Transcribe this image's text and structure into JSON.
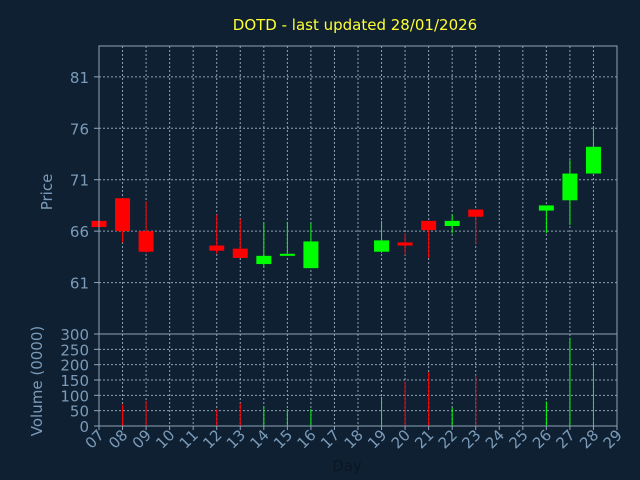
{
  "chart_data": [
    {
      "type": "candlestick",
      "title": "DOTD - last updated 28/01/2026",
      "ylabel": "Price",
      "ylim": [
        56,
        84
      ],
      "yticks": [
        61,
        66,
        71,
        76,
        81
      ],
      "grid": true,
      "colors": {
        "up": "#00ff00",
        "down": "#ff0000",
        "background": "#0f2033",
        "text": "#7b9bb8",
        "title": "#ffff33",
        "grid": "#8fa3b6"
      },
      "days": [
        "07",
        "08",
        "09",
        "10",
        "11",
        "12",
        "13",
        "14",
        "15",
        "16",
        "17",
        "18",
        "19",
        "20",
        "21",
        "22",
        "23",
        "24",
        "25",
        "26",
        "27",
        "28",
        "29"
      ],
      "candles": [
        {
          "day": "07",
          "open": 67.0,
          "high": 67.0,
          "low": 66.4,
          "close": 66.4
        },
        {
          "day": "08",
          "open": 69.2,
          "high": 69.2,
          "low": 64.9,
          "close": 66.0
        },
        {
          "day": "09",
          "open": 66.0,
          "high": 68.9,
          "low": 63.9,
          "close": 64.0
        },
        {
          "day": "12",
          "open": 64.6,
          "high": 67.6,
          "low": 63.8,
          "close": 64.1
        },
        {
          "day": "13",
          "open": 64.3,
          "high": 67.2,
          "low": 63.4,
          "close": 63.4
        },
        {
          "day": "14",
          "open": 62.8,
          "high": 66.8,
          "low": 62.5,
          "close": 63.6
        },
        {
          "day": "15",
          "open": 63.6,
          "high": 66.9,
          "low": 63.6,
          "close": 63.8
        },
        {
          "day": "16",
          "open": 62.4,
          "high": 66.8,
          "low": 62.4,
          "close": 65.0
        },
        {
          "day": "19",
          "open": 64.0,
          "high": 67.0,
          "low": 63.9,
          "close": 65.1
        },
        {
          "day": "20",
          "open": 64.9,
          "high": 65.8,
          "low": 63.7,
          "close": 64.6
        },
        {
          "day": "21",
          "open": 67.0,
          "high": 67.0,
          "low": 63.4,
          "close": 66.1
        },
        {
          "day": "22",
          "open": 66.5,
          "high": 67.6,
          "low": 65.8,
          "close": 67.0
        },
        {
          "day": "23",
          "open": 68.1,
          "high": 68.1,
          "low": 64.7,
          "close": 67.4
        },
        {
          "day": "26",
          "open": 68.0,
          "high": 68.5,
          "low": 65.8,
          "close": 68.5
        },
        {
          "day": "27",
          "open": 69.0,
          "high": 72.9,
          "low": 66.6,
          "close": 71.6
        },
        {
          "day": "28",
          "open": 71.6,
          "high": 76.0,
          "low": 71.6,
          "close": 74.2
        }
      ]
    },
    {
      "type": "bar",
      "ylabel": "Volume (0000)",
      "xlabel": "Day",
      "ylim": [
        0,
        300
      ],
      "yticks": [
        0,
        50,
        100,
        150,
        200,
        250,
        300
      ],
      "grid": true,
      "days": [
        "07",
        "08",
        "09",
        "10",
        "11",
        "12",
        "13",
        "14",
        "15",
        "16",
        "17",
        "18",
        "19",
        "20",
        "21",
        "22",
        "23",
        "24",
        "25",
        "26",
        "27",
        "28",
        "29"
      ],
      "bars": [
        {
          "day": "07",
          "value": 8,
          "direction": "down"
        },
        {
          "day": "08",
          "value": 70,
          "direction": "down"
        },
        {
          "day": "09",
          "value": 82,
          "direction": "down"
        },
        {
          "day": "12",
          "value": 55,
          "direction": "down"
        },
        {
          "day": "13",
          "value": 75,
          "direction": "down"
        },
        {
          "day": "14",
          "value": 62,
          "direction": "up"
        },
        {
          "day": "15",
          "value": 55,
          "direction": "up"
        },
        {
          "day": "16",
          "value": 55,
          "direction": "up"
        },
        {
          "day": "19",
          "value": 95,
          "direction": "up"
        },
        {
          "day": "20",
          "value": 145,
          "direction": "down"
        },
        {
          "day": "21",
          "value": 175,
          "direction": "down"
        },
        {
          "day": "22",
          "value": 60,
          "direction": "up"
        },
        {
          "day": "23",
          "value": 165,
          "direction": "down"
        },
        {
          "day": "26",
          "value": 80,
          "direction": "up"
        },
        {
          "day": "27",
          "value": 288,
          "direction": "up"
        },
        {
          "day": "28",
          "value": 205,
          "direction": "up"
        }
      ]
    }
  ]
}
